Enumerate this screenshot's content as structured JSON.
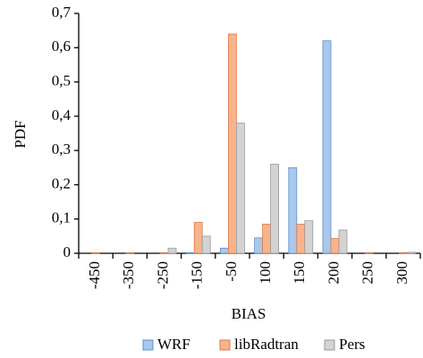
{
  "chart_data": {
    "type": "bar",
    "x_label": "BIAS",
    "y_label": "PDF",
    "categories": [
      "-450",
      "-350",
      "-250",
      "-150",
      "-50",
      "100",
      "150",
      "200",
      "250",
      "300"
    ],
    "series": [
      {
        "name": "WRF",
        "color": "#a9c8ea",
        "edgecolor": "#5b8fcf",
        "values": [
          0,
          0,
          0,
          0.002,
          0.015,
          0.045,
          0.25,
          0.62,
          0,
          0
        ]
      },
      {
        "name": "libRadtran",
        "color": "#f8b48c",
        "edgecolor": "#e07a45",
        "values": [
          0.002,
          0.002,
          0.002,
          0.09,
          0.64,
          0.085,
          0.085,
          0.043,
          0.002,
          0.002
        ]
      },
      {
        "name": "Pers",
        "color": "#d3d3d3",
        "edgecolor": "#9a9a9a",
        "values": [
          0,
          0,
          0.015,
          0.05,
          0.38,
          0.26,
          0.095,
          0.068,
          0,
          0.003
        ]
      }
    ],
    "ylim": [
      0,
      0.7
    ],
    "yticks": [
      0,
      {
        "value": 0.1,
        "label": "0,1"
      },
      {
        "value": 0.2,
        "label": "0,2"
      },
      {
        "value": 0.3,
        "label": "0,3"
      },
      {
        "value": 0.4,
        "label": "0,4"
      },
      {
        "value": 0.5,
        "label": "0,5"
      },
      {
        "value": 0.6,
        "label": "0,6"
      },
      {
        "value": 0.7,
        "label": "0,7"
      }
    ],
    "grid": false
  }
}
